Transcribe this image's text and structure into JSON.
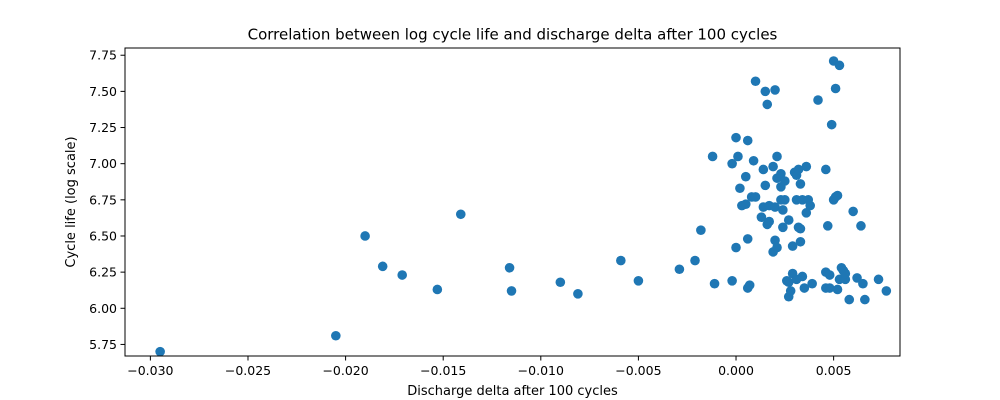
{
  "chart_data": {
    "type": "scatter",
    "title": "Correlation between log cycle life and discharge delta after 100 cycles",
    "xlabel": "Discharge delta after 100 cycles",
    "ylabel": "Cycle life (log scale)",
    "xlim": [
      -0.0313,
      0.0084
    ],
    "ylim": [
      5.67,
      7.8
    ],
    "xticks": [
      {
        "value": -0.03,
        "label": "−0.030"
      },
      {
        "value": -0.025,
        "label": "−0.025"
      },
      {
        "value": -0.02,
        "label": "−0.020"
      },
      {
        "value": -0.015,
        "label": "−0.015"
      },
      {
        "value": -0.01,
        "label": "−0.010"
      },
      {
        "value": -0.005,
        "label": "−0.005"
      },
      {
        "value": 0.0,
        "label": "0.000"
      },
      {
        "value": 0.005,
        "label": "0.005"
      }
    ],
    "yticks": [
      {
        "value": 5.75,
        "label": "5.75"
      },
      {
        "value": 6.0,
        "label": "6.00"
      },
      {
        "value": 6.25,
        "label": "6.25"
      },
      {
        "value": 6.5,
        "label": "6.50"
      },
      {
        "value": 6.75,
        "label": "6.75"
      },
      {
        "value": 7.0,
        "label": "7.00"
      },
      {
        "value": 7.25,
        "label": "7.25"
      },
      {
        "value": 7.5,
        "label": "7.50"
      },
      {
        "value": 7.75,
        "label": "7.75"
      }
    ],
    "grid": false,
    "color": "#1f77b4",
    "points": [
      [
        -0.0295,
        5.7
      ],
      [
        -0.0205,
        5.81
      ],
      [
        -0.019,
        6.5
      ],
      [
        -0.0181,
        6.29
      ],
      [
        -0.0171,
        6.23
      ],
      [
        -0.0153,
        6.13
      ],
      [
        -0.0141,
        6.65
      ],
      [
        -0.0116,
        6.28
      ],
      [
        -0.0115,
        6.12
      ],
      [
        -0.009,
        6.18
      ],
      [
        -0.0081,
        6.1
      ],
      [
        -0.0059,
        6.33
      ],
      [
        -0.005,
        6.19
      ],
      [
        -0.0029,
        6.27
      ],
      [
        -0.0021,
        6.33
      ],
      [
        -0.0018,
        6.54
      ],
      [
        -0.0011,
        6.17
      ],
      [
        -0.0012,
        7.05
      ],
      [
        -0.0002,
        6.19
      ],
      [
        -0.0002,
        7.0
      ],
      [
        0.0,
        6.42
      ],
      [
        0.0,
        7.18
      ],
      [
        0.0001,
        7.05
      ],
      [
        0.0002,
        6.83
      ],
      [
        0.0003,
        6.71
      ],
      [
        0.0005,
        6.72
      ],
      [
        0.0006,
        6.48
      ],
      [
        0.0005,
        6.91
      ],
      [
        0.0006,
        7.16
      ],
      [
        0.0006,
        6.14
      ],
      [
        0.0007,
        6.16
      ],
      [
        0.0008,
        6.77
      ],
      [
        0.0009,
        7.02
      ],
      [
        0.001,
        6.77
      ],
      [
        0.001,
        7.57
      ],
      [
        0.0013,
        6.63
      ],
      [
        0.0014,
        6.96
      ],
      [
        0.0014,
        6.7
      ],
      [
        0.0015,
        7.5
      ],
      [
        0.0015,
        6.85
      ],
      [
        0.0016,
        7.41
      ],
      [
        0.0016,
        6.58
      ],
      [
        0.0017,
        6.6
      ],
      [
        0.0017,
        6.71
      ],
      [
        0.0019,
        6.39
      ],
      [
        0.0019,
        6.98
      ],
      [
        0.002,
        7.51
      ],
      [
        0.002,
        6.7
      ],
      [
        0.002,
        6.47
      ],
      [
        0.0021,
        6.42
      ],
      [
        0.0021,
        7.05
      ],
      [
        0.0021,
        6.9
      ],
      [
        0.0023,
        6.75
      ],
      [
        0.0023,
        6.84
      ],
      [
        0.0023,
        6.93
      ],
      [
        0.0024,
        6.68
      ],
      [
        0.0024,
        6.56
      ],
      [
        0.0025,
        6.88
      ],
      [
        0.0025,
        6.75
      ],
      [
        0.0026,
        6.19
      ],
      [
        0.0027,
        6.18
      ],
      [
        0.0027,
        6.61
      ],
      [
        0.0027,
        6.08
      ],
      [
        0.0028,
        6.12
      ],
      [
        0.0029,
        6.24
      ],
      [
        0.0029,
        6.43
      ],
      [
        0.003,
        6.94
      ],
      [
        0.0031,
        6.2
      ],
      [
        0.0031,
        6.92
      ],
      [
        0.0031,
        6.75
      ],
      [
        0.0032,
        6.56
      ],
      [
        0.0032,
        6.96
      ],
      [
        0.0033,
        6.46
      ],
      [
        0.0033,
        6.55
      ],
      [
        0.0033,
        6.86
      ],
      [
        0.0034,
        6.75
      ],
      [
        0.0034,
        6.22
      ],
      [
        0.0035,
        6.14
      ],
      [
        0.0036,
        6.98
      ],
      [
        0.0036,
        6.66
      ],
      [
        0.0037,
        6.75
      ],
      [
        0.0038,
        6.71
      ],
      [
        0.0039,
        6.17
      ],
      [
        0.0042,
        7.44
      ],
      [
        0.0046,
        6.25
      ],
      [
        0.0046,
        6.96
      ],
      [
        0.0046,
        6.14
      ],
      [
        0.0047,
        6.57
      ],
      [
        0.0048,
        6.14
      ],
      [
        0.0048,
        6.23
      ],
      [
        0.0049,
        7.27
      ],
      [
        0.005,
        6.75
      ],
      [
        0.005,
        7.71
      ],
      [
        0.0051,
        6.77
      ],
      [
        0.0051,
        7.52
      ],
      [
        0.0052,
        6.78
      ],
      [
        0.0052,
        6.13
      ],
      [
        0.0053,
        7.68
      ],
      [
        0.0053,
        6.2
      ],
      [
        0.0054,
        6.28
      ],
      [
        0.0055,
        6.26
      ],
      [
        0.0056,
        6.2
      ],
      [
        0.0056,
        6.24
      ],
      [
        0.0058,
        6.06
      ],
      [
        0.006,
        6.67
      ],
      [
        0.0062,
        6.21
      ],
      [
        0.0064,
        6.57
      ],
      [
        0.0065,
        6.17
      ],
      [
        0.0066,
        6.06
      ],
      [
        0.0073,
        6.2
      ],
      [
        0.0077,
        6.12
      ]
    ]
  }
}
